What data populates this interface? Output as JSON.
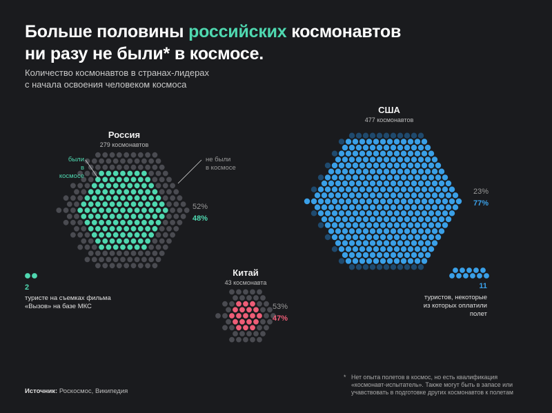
{
  "title": {
    "line1_pre": "Больше половины ",
    "line1_accent": "российских",
    "line1_post": " космонавтов",
    "line2": "ни разу не были* в космосе."
  },
  "subtitle": {
    "line1": "Количество космонавтов в странах-лидерах",
    "line2": "с начала освоения человеком космоса"
  },
  "labels": {
    "been_line1": "были",
    "been_line2": "в космосе",
    "not_been_line1": "не были",
    "not_been_line2": "в космосе"
  },
  "tourists": {
    "russia_count": "2",
    "russia_line1": "туристе на съемках фильма",
    "russia_line2": "«Вызов» на базе МКС",
    "usa_count": "11",
    "usa_line1": "туристов, некоторые",
    "usa_line2": "из которых оплатили полет"
  },
  "source": {
    "label": "Источник:",
    "text": " Роскосмос, Википедия"
  },
  "footnote": {
    "star": "*",
    "line1": "Нет опыта полетов в космос, но есть квалификация",
    "line2": "«космонавт-испытатель». Также могут быть в запасе или",
    "line3": "учавствовать в подготовке других космонавтов к полетам"
  },
  "colors": {
    "background": "#1a1b1e",
    "not_flown": "#4a4b51",
    "russia": "#4fd8b0",
    "usa": "#3aa0e8",
    "usa_dim": "#1f4a6e",
    "china": "#ee5d77"
  },
  "chart_data": {
    "type": "unit-chart",
    "series": [
      {
        "country": "Россия",
        "total_label": "279 космонавтов",
        "total": 279,
        "not_flown_pct": "52%",
        "flown_pct": "48%",
        "not_flown_share": 52,
        "flown_share": 48,
        "tourists": 2
      },
      {
        "country": "США",
        "total_label": "477 космонавтов",
        "total": 477,
        "not_flown_pct": "23%",
        "flown_pct": "77%",
        "not_flown_share": 23,
        "flown_share": 77,
        "tourists": 11
      },
      {
        "country": "Китай",
        "total_label": "43 космонавта",
        "total": 43,
        "not_flown_pct": "53%",
        "flown_pct": "47%",
        "not_flown_share": 53,
        "flown_share": 47
      }
    ]
  }
}
